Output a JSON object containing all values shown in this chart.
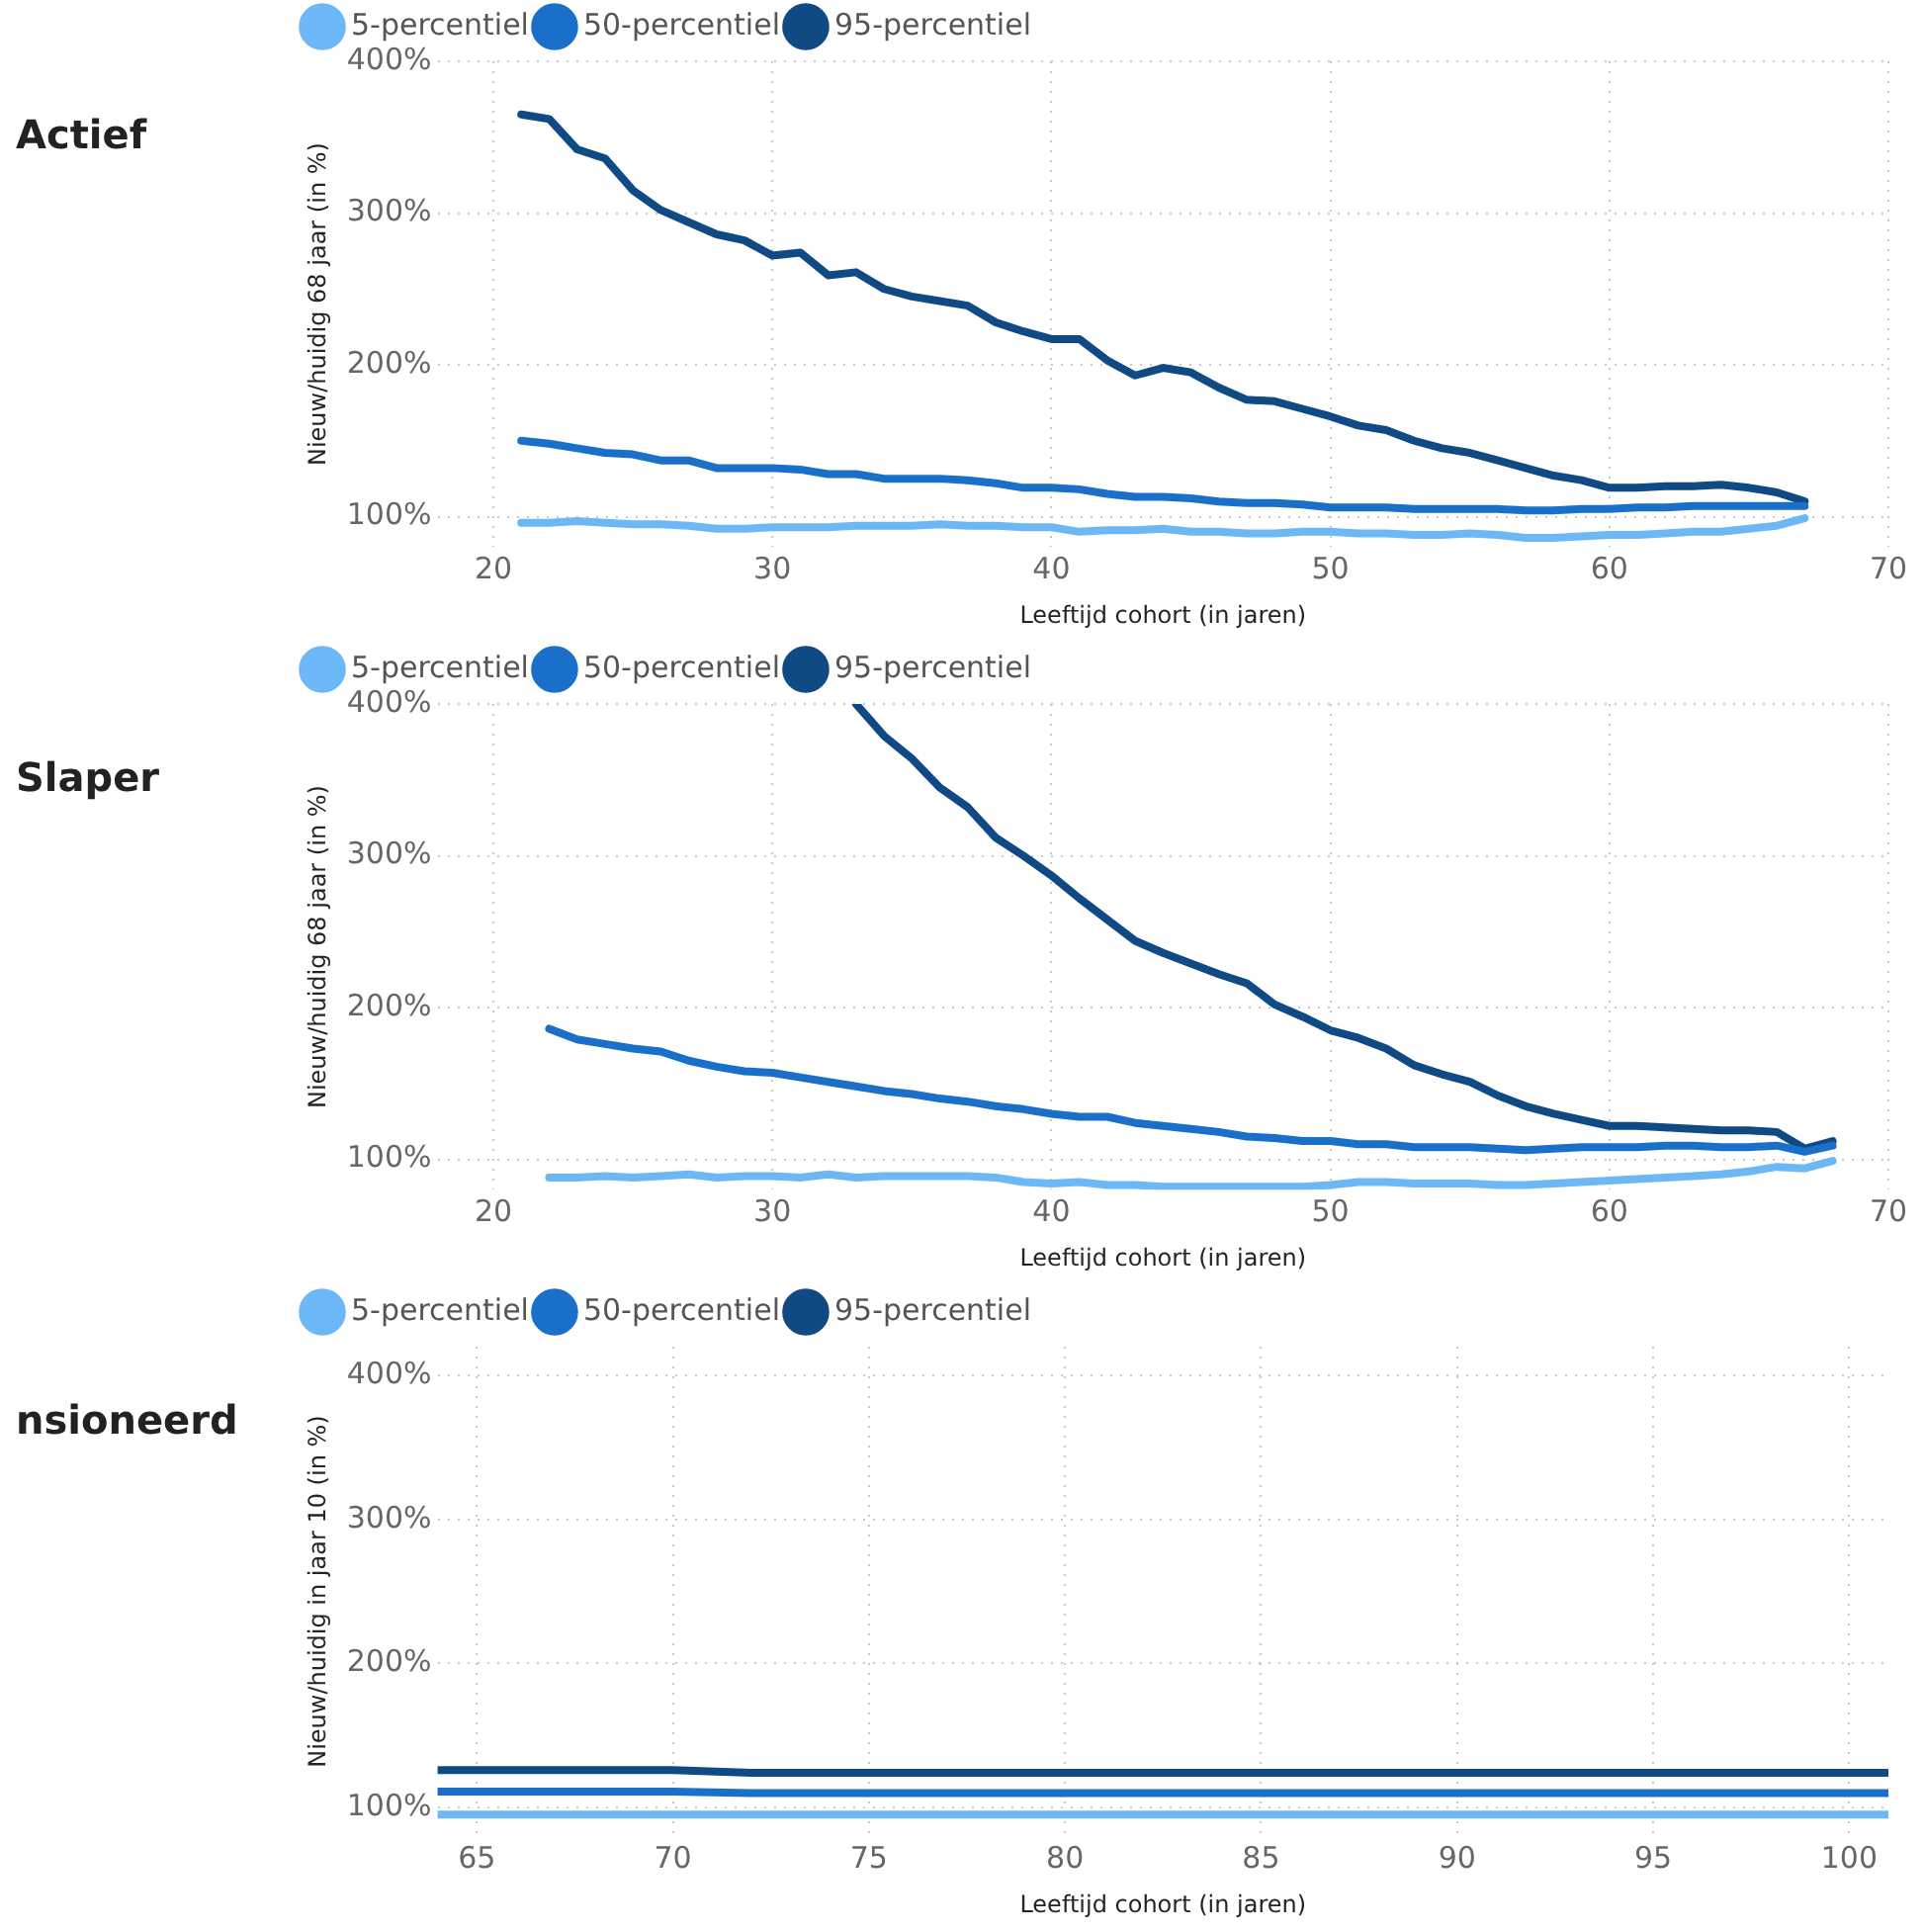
{
  "chart_data": [
    {
      "type": "line",
      "title": "Actief",
      "xlabel": "Leeftijd cohort (in jaren)",
      "ylabel": "Nieuw/huidig 68 jaar (in %)",
      "legend": "top left",
      "grid": true,
      "x": [
        21,
        22,
        23,
        24,
        25,
        26,
        27,
        28,
        29,
        30,
        31,
        32,
        33,
        34,
        35,
        36,
        37,
        38,
        39,
        40,
        41,
        42,
        43,
        44,
        45,
        46,
        47,
        48,
        49,
        50,
        51,
        52,
        53,
        54,
        55,
        56,
        57,
        58,
        59,
        60,
        61,
        62,
        63,
        64,
        65,
        66,
        67
      ],
      "xlim": [
        18,
        70
      ],
      "xticks": [
        20,
        30,
        40,
        50,
        60,
        70
      ],
      "ylim": [
        80,
        400
      ],
      "yticks": [
        {
          "value": 100,
          "label": "100%"
        },
        {
          "value": 200,
          "label": "200%"
        },
        {
          "value": 300,
          "label": "300%"
        },
        {
          "value": 400,
          "label": "400%"
        }
      ],
      "series": [
        {
          "name": "5-percentiel",
          "color": "#6cb8f6",
          "values": [
            96,
            96,
            97,
            96,
            95,
            95,
            94,
            92,
            92,
            93,
            93,
            93,
            94,
            94,
            94,
            95,
            94,
            94,
            93,
            93,
            90,
            91,
            91,
            92,
            90,
            90,
            89,
            89,
            90,
            90,
            89,
            89,
            88,
            88,
            89,
            88,
            86,
            86,
            87,
            88,
            88,
            89,
            90,
            90,
            92,
            94,
            99
          ]
        },
        {
          "name": "50-percentiel",
          "color": "#1a6fc9",
          "values": [
            150,
            148,
            145,
            142,
            141,
            137,
            137,
            132,
            132,
            132,
            131,
            128,
            128,
            125,
            125,
            125,
            124,
            122,
            119,
            119,
            118,
            115,
            113,
            113,
            112,
            110,
            109,
            109,
            108,
            106,
            106,
            106,
            105,
            105,
            105,
            105,
            104,
            104,
            105,
            105,
            106,
            106,
            107,
            107,
            107,
            107,
            107
          ]
        },
        {
          "name": "95-percentiel",
          "color": "#0f4a85",
          "values": [
            365,
            362,
            342,
            336,
            315,
            302,
            294,
            286,
            282,
            272,
            274,
            259,
            261,
            250,
            245,
            242,
            239,
            228,
            222,
            217,
            217,
            203,
            193,
            198,
            195,
            185,
            177,
            176,
            171,
            166,
            160,
            157,
            150,
            145,
            142,
            137,
            132,
            127,
            124,
            119,
            119,
            120,
            120,
            121,
            119,
            116,
            110
          ]
        }
      ]
    },
    {
      "type": "line",
      "title": "Slaper",
      "xlabel": "Leeftijd cohort (in jaren)",
      "ylabel": "Nieuw/huidig 68 jaar (in %)",
      "legend": "top left",
      "grid": true,
      "x": [
        22,
        23,
        24,
        25,
        26,
        27,
        28,
        29,
        30,
        31,
        32,
        33,
        34,
        35,
        36,
        37,
        38,
        39,
        40,
        41,
        42,
        43,
        44,
        45,
        46,
        47,
        48,
        49,
        50,
        51,
        52,
        53,
        54,
        55,
        56,
        57,
        58,
        59,
        60,
        61,
        62,
        63,
        64,
        65,
        66,
        67,
        68
      ],
      "xlim": [
        18,
        70
      ],
      "xticks": [
        20,
        30,
        40,
        50,
        60,
        70
      ],
      "ylim": [
        80,
        400
      ],
      "yticks": [
        {
          "value": 100,
          "label": "100%"
        },
        {
          "value": 200,
          "label": "200%"
        },
        {
          "value": 300,
          "label": "300%"
        },
        {
          "value": 400,
          "label": "400%"
        }
      ],
      "series": [
        {
          "name": "5-percentiel",
          "color": "#6cb8f6",
          "values": [
            88,
            88,
            89,
            88,
            89,
            90,
            88,
            89,
            89,
            88,
            90,
            88,
            89,
            89,
            89,
            89,
            88,
            85,
            84,
            85,
            83,
            83,
            82,
            82,
            82,
            82,
            82,
            82,
            83,
            85,
            85,
            84,
            84,
            84,
            83,
            83,
            84,
            85,
            86,
            87,
            88,
            89,
            90,
            92,
            95,
            94,
            99
          ]
        },
        {
          "name": "50-percentiel",
          "color": "#1a6fc9",
          "values": [
            186,
            179,
            176,
            173,
            171,
            165,
            161,
            158,
            157,
            154,
            151,
            148,
            145,
            143,
            140,
            138,
            135,
            133,
            130,
            128,
            128,
            124,
            122,
            120,
            118,
            115,
            114,
            112,
            112,
            110,
            110,
            108,
            108,
            108,
            107,
            106,
            107,
            108,
            108,
            108,
            109,
            109,
            108,
            108,
            109,
            105,
            109
          ]
        },
        {
          "name": "95-percentiel",
          "color": "#0f4a85",
          "values": [
            null,
            null,
            null,
            null,
            null,
            null,
            null,
            null,
            null,
            null,
            null,
            400,
            379,
            364,
            345,
            332,
            312,
            300,
            287,
            272,
            258,
            244,
            236,
            229,
            222,
            216,
            202,
            194,
            185,
            180,
            173,
            162,
            156,
            151,
            142,
            135,
            130,
            126,
            122,
            122,
            121,
            120,
            119,
            119,
            118,
            107,
            112
          ]
        }
      ]
    },
    {
      "type": "line",
      "title": "nsioneerd",
      "xlabel": "Leeftijd cohort (in jaren)",
      "ylabel": "Nieuw/huidig in jaar 10 (in %)",
      "legend": "top left",
      "grid": true,
      "x": [
        64,
        70,
        72,
        80,
        90,
        101
      ],
      "xlim": [
        64,
        101
      ],
      "xticks": [
        65,
        70,
        75,
        80,
        85,
        90,
        95,
        100
      ],
      "ylim": [
        80,
        420
      ],
      "yticks": [
        {
          "value": 100,
          "label": "100%"
        },
        {
          "value": 200,
          "label": "200%"
        },
        {
          "value": 300,
          "label": "300%"
        },
        {
          "value": 400,
          "label": "400%"
        }
      ],
      "series": [
        {
          "name": "5-percentiel",
          "color": "#6cb8f6",
          "values": [
            95,
            95,
            95,
            95,
            95,
            95
          ]
        },
        {
          "name": "50-percentiel",
          "color": "#1a6fc9",
          "values": [
            111,
            111,
            110,
            110,
            110,
            110
          ]
        },
        {
          "name": "95-percentiel",
          "color": "#0f4a85",
          "values": [
            126,
            126,
            124,
            124,
            124,
            124
          ]
        }
      ]
    }
  ]
}
